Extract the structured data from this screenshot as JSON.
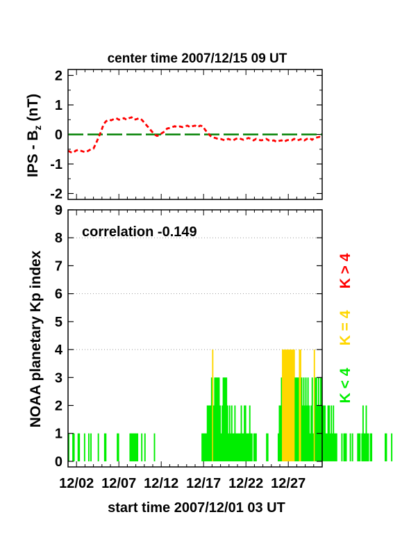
{
  "chart_data": [
    {
      "type": "line",
      "title": "center time 2007/12/15 09 UT",
      "ylabel_main": "IPS - B",
      "ylabel_sub": "z",
      "ylabel_unit": " (nT)",
      "ylim": [
        -2.2,
        2.2
      ],
      "yticks": [
        "-2",
        "-1",
        "0",
        "1",
        "2"
      ],
      "xlim_days": [
        0,
        30
      ],
      "zero_line_color": "#008000",
      "series_color": "#ff0000",
      "series": [
        {
          "x": [
            0,
            0.3,
            0.6,
            0.9,
            1.2,
            1.5,
            1.8,
            2.1,
            2.4,
            2.7,
            3.0,
            3.3,
            3.6,
            3.9,
            4.2,
            4.5,
            4.8,
            5.1,
            5.4,
            5.7,
            6.0,
            6.3,
            6.6,
            6.9,
            7.2,
            7.5,
            7.8,
            8.1,
            8.4,
            8.7,
            9.0,
            9.3,
            9.6,
            9.9,
            10.2,
            10.5,
            10.8,
            11.1,
            11.4,
            11.7,
            12.0,
            12.3,
            12.6,
            12.9,
            13.2,
            13.5,
            13.8,
            14.1,
            14.4,
            14.7,
            15.0,
            15.3,
            15.6,
            15.9,
            16.2,
            16.5,
            16.8,
            17.1,
            17.4,
            17.7,
            18.0,
            18.3,
            18.6,
            18.9,
            19.2,
            19.5,
            19.8,
            20.1,
            20.4,
            20.7,
            21.0,
            21.3,
            21.6,
            21.9,
            22.2,
            22.5,
            22.8,
            23.1,
            23.4,
            23.7,
            24.0,
            24.3,
            24.6,
            24.9,
            25.2,
            25.5,
            25.8,
            26.1,
            26.4,
            26.7,
            27.0,
            27.3,
            27.6,
            27.9,
            28.2,
            28.5,
            28.8,
            29.1,
            29.4,
            29.7,
            30.0
          ],
          "values": [
            -0.55,
            -0.6,
            -0.62,
            -0.55,
            -0.52,
            -0.55,
            -0.58,
            -0.6,
            -0.55,
            -0.5,
            -0.48,
            -0.3,
            -0.1,
            0.1,
            0.35,
            0.45,
            0.5,
            0.48,
            0.52,
            0.55,
            0.5,
            0.52,
            0.55,
            0.5,
            0.55,
            0.58,
            0.5,
            0.52,
            0.55,
            0.5,
            0.4,
            0.3,
            0.2,
            0.1,
            0.0,
            -0.05,
            -0.02,
            0.05,
            0.1,
            0.2,
            0.22,
            0.25,
            0.28,
            0.25,
            0.27,
            0.25,
            0.28,
            0.3,
            0.25,
            0.28,
            0.3,
            0.25,
            0.3,
            0.28,
            0.15,
            0.05,
            -0.05,
            -0.1,
            -0.12,
            -0.15,
            -0.15,
            -0.18,
            -0.2,
            -0.15,
            -0.18,
            -0.2,
            -0.15,
            -0.12,
            -0.15,
            -0.18,
            -0.15,
            -0.12,
            -0.15,
            -0.2,
            -0.15,
            -0.18,
            -0.2,
            -0.18,
            -0.15,
            -0.2,
            -0.22,
            -0.2,
            -0.25,
            -0.22,
            -0.2,
            -0.25,
            -0.2,
            -0.18,
            -0.2,
            -0.15,
            -0.2,
            -0.18,
            -0.15,
            -0.2,
            -0.15,
            -0.12,
            -0.18,
            -0.12,
            -0.1,
            -0.08,
            -0.1
          ]
        }
      ]
    },
    {
      "type": "bar",
      "annotation": "correlation -0.149",
      "ylabel": "NOAA planetary Kp index",
      "xlabel": "start time 2007/12/01 03 UT",
      "ylim": [
        -0.2,
        9
      ],
      "yticks": [
        "0",
        "1",
        "2",
        "3",
        "4",
        "5",
        "6",
        "7",
        "8",
        "9"
      ],
      "xlim_days": [
        0,
        30
      ],
      "xtick_positions_days": [
        1,
        6,
        11,
        16,
        21,
        26
      ],
      "xticks": [
        "12/02",
        "12/07",
        "12/12",
        "12/17",
        "12/22",
        "12/27"
      ],
      "gridlines": [
        4,
        6,
        8
      ],
      "legend": [
        "K < 4",
        "K = 4",
        "K > 4"
      ],
      "legend_colors": [
        "#00ee00",
        "#ffd700",
        "#ff0000"
      ],
      "bar_width_days": 0.125,
      "kp_values": [
        1,
        0,
        0,
        0,
        1,
        1,
        0,
        0,
        0,
        1,
        1,
        0,
        0,
        0,
        0,
        1,
        0,
        0,
        0,
        1,
        0,
        1,
        0,
        0,
        0,
        0,
        0,
        0,
        1,
        0,
        0,
        0,
        0,
        0,
        1,
        1,
        0,
        0,
        0,
        0,
        0,
        0,
        0,
        0,
        0,
        0,
        1,
        1,
        0,
        0,
        0,
        0,
        0,
        0,
        0,
        0,
        0,
        0,
        1,
        1,
        1,
        1,
        1,
        1,
        1,
        1,
        0,
        0,
        0,
        1,
        0,
        0,
        1,
        0,
        0,
        0,
        0,
        0,
        0,
        0,
        0,
        1,
        0,
        0,
        0,
        0,
        0,
        0,
        0,
        0,
        0,
        0,
        0,
        0,
        0,
        0,
        0,
        0,
        0,
        0,
        0,
        0,
        0,
        0,
        0,
        0,
        0,
        0,
        0,
        0,
        0,
        0,
        0,
        0,
        0,
        0,
        0,
        0,
        0,
        0,
        0,
        0,
        0,
        0,
        0,
        0,
        1,
        1,
        1,
        1,
        1,
        2,
        2,
        2,
        2,
        3,
        4,
        2,
        3,
        3,
        3,
        3,
        3,
        2,
        1,
        2,
        3,
        3,
        3,
        3,
        2,
        1,
        2,
        1,
        2,
        1,
        1,
        2,
        1,
        1,
        1,
        1,
        1,
        2,
        1,
        1,
        2,
        2,
        1,
        1,
        1,
        2,
        1,
        1,
        0,
        1,
        1,
        1,
        0,
        0,
        0,
        0,
        0,
        0,
        0,
        0,
        0,
        1,
        1,
        0,
        0,
        0,
        0,
        0,
        0,
        0,
        0,
        0,
        1,
        2,
        2,
        3,
        4,
        4,
        4,
        4,
        4,
        4,
        4,
        4,
        4,
        4,
        4,
        4,
        3,
        3,
        3,
        3,
        4,
        4,
        3,
        2,
        3,
        2,
        3,
        2,
        3,
        2,
        1,
        2,
        3,
        1,
        4,
        3,
        3,
        2,
        3,
        2,
        3,
        3,
        2,
        2,
        2,
        1,
        1,
        2,
        2,
        1,
        2,
        1,
        2,
        1,
        1,
        1,
        0,
        0,
        0,
        0,
        1,
        0,
        1,
        1,
        1,
        0,
        0,
        0,
        1,
        0,
        1,
        0,
        0,
        0,
        0,
        1,
        1,
        1,
        0,
        1,
        2,
        1,
        1,
        2,
        1,
        1,
        0,
        1,
        1,
        0,
        0,
        0,
        0,
        0,
        0,
        0,
        0,
        0,
        0,
        0,
        0,
        1,
        1,
        0,
        0,
        0,
        0,
        1,
        0,
        0,
        0,
        0,
        0,
        0,
        0,
        0,
        0,
        0,
        0,
        0,
        0,
        0,
        1,
        1,
        0,
        0,
        0,
        0,
        0,
        0,
        0,
        0,
        0,
        0,
        0,
        0,
        0,
        0,
        0,
        0,
        0,
        0,
        0
      ]
    }
  ]
}
